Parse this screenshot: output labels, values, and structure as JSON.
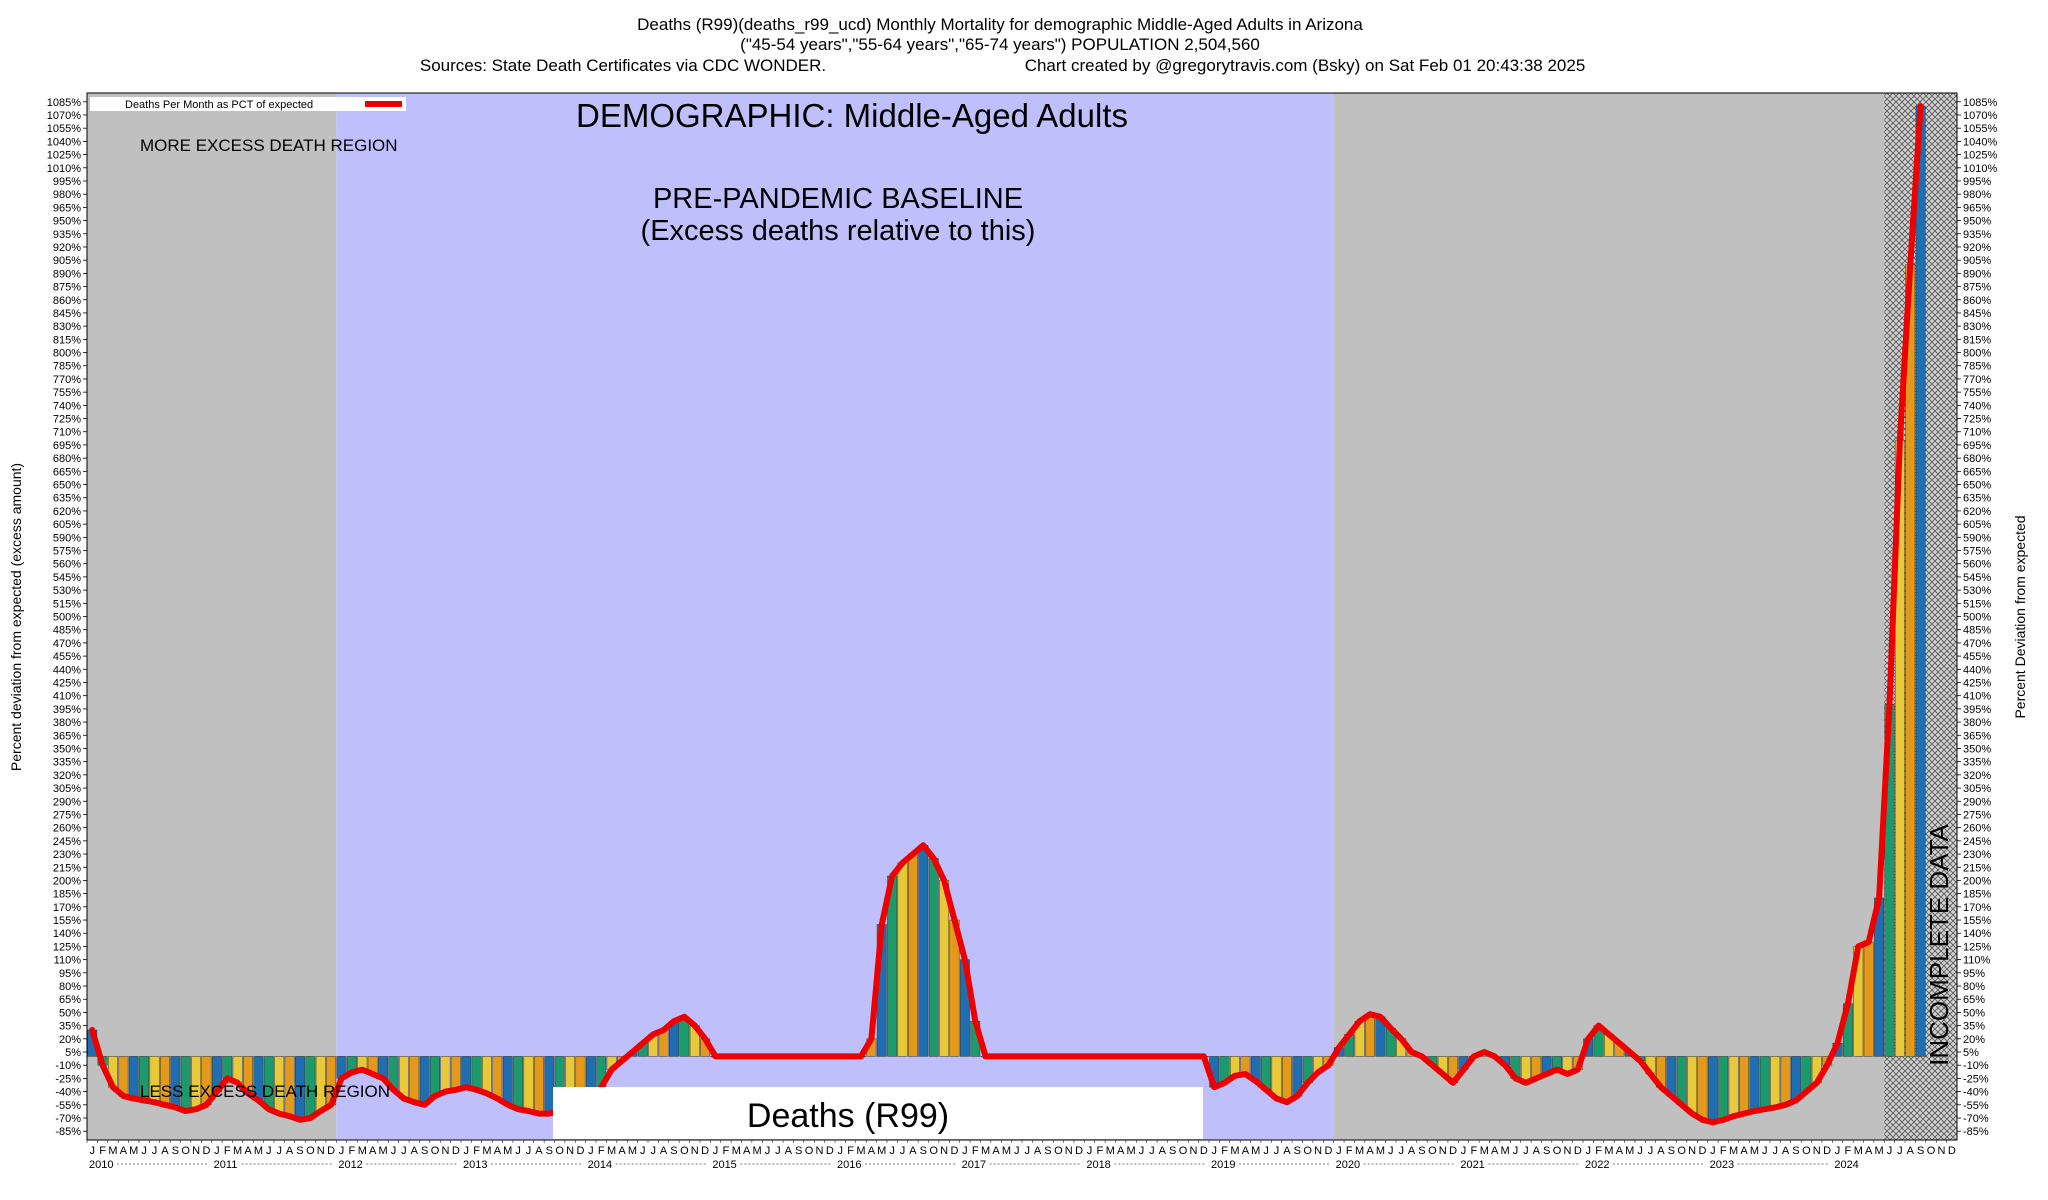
{
  "chart_data": {
    "type": "bar",
    "title_lines": [
      "Deaths (R99)(deaths_r99_ucd) Monthly Mortality for demographic Middle-Aged Adults in Arizona",
      "(\"45-54 years\",\"55-64 years\",\"65-74 years\") POPULATION 2,504,560",
      "Sources: State Death Certificates via CDC WONDER.",
      "Chart created by @gregorytravis.com (Bsky) on Sat Feb 01 20:43:38 2025"
    ],
    "ylabel_left": "Percent deviation from expected (excess amount)",
    "ylabel_right": "Percent Deviation from expected",
    "legend": "Deaths Per Month as PCT of expected",
    "legend_placement": "top-left",
    "demographic_label": "DEMOGRAPHIC: Middle-Aged Adults",
    "baseline_label_1": "PRE-PANDEMIC BASELINE",
    "baseline_label_2": "(Excess deaths relative to this)",
    "more_region_label": "MORE EXCESS DEATH REGION",
    "less_region_label": "LESS EXCESS DEATH REGION",
    "incomplete_label": "INCOMPLETE DATA",
    "footer_label": "Deaths (R99)",
    "ylim": [
      -95,
      1095
    ],
    "y_tick_step": 15,
    "y_tick_start": -85,
    "month_letters": [
      "J",
      "F",
      "M",
      "A",
      "M",
      "J",
      "J",
      "A",
      "S",
      "O",
      "N",
      "D"
    ],
    "years": [
      "2010",
      "2011",
      "2012",
      "2013",
      "2014",
      "2015",
      "2016",
      "2017",
      "2018",
      "2019",
      "2020",
      "2021",
      "2022",
      "2023",
      "2024"
    ],
    "region_gray_1": [
      "2010-01",
      "2011-12"
    ],
    "region_baseline": [
      "2012-01",
      "2019-12"
    ],
    "region_gray_2": [
      "2020-01",
      "2024-12"
    ],
    "region_incomplete": [
      "2024-06",
      "2024-12"
    ],
    "bar_colors": [
      "#1f6fb0",
      "#1c9a6c",
      "#e8c93a",
      "#e39a1c"
    ],
    "line_color": "#ee0000",
    "gray_color": "#c0c0c0",
    "baseline_color": "#bfbffc",
    "values": [
      30,
      -10,
      -35,
      -45,
      -48,
      -50,
      -52,
      -55,
      -58,
      -62,
      -60,
      -55,
      -40,
      -25,
      -30,
      -42,
      -50,
      -60,
      -65,
      -68,
      -72,
      -70,
      -62,
      -55,
      -25,
      -18,
      -15,
      -20,
      -25,
      -38,
      -48,
      -52,
      -55,
      -45,
      -40,
      -38,
      -35,
      -38,
      -42,
      -48,
      -55,
      -60,
      -62,
      -65,
      -65,
      -62,
      -60,
      -58,
      -50,
      -35,
      -15,
      -5,
      5,
      15,
      25,
      30,
      40,
      45,
      35,
      20,
      0,
      0,
      0,
      0,
      0,
      0,
      0,
      0,
      0,
      0,
      0,
      0,
      0,
      0,
      0,
      20,
      150,
      205,
      220,
      230,
      240,
      225,
      200,
      155,
      110,
      40,
      0,
      0,
      0,
      0,
      0,
      0,
      0,
      0,
      0,
      0,
      0,
      0,
      0,
      0,
      0,
      0,
      0,
      0,
      0,
      0,
      0,
      0,
      -35,
      -30,
      -22,
      -20,
      -28,
      -38,
      -48,
      -52,
      -45,
      -30,
      -18,
      -10,
      10,
      25,
      40,
      48,
      45,
      32,
      20,
      5,
      0,
      -10,
      -20,
      -30,
      -15,
      0,
      5,
      0,
      -10,
      -25,
      -30,
      -25,
      -20,
      -15,
      -20,
      -15,
      20,
      35,
      25,
      15,
      5,
      -5,
      -20,
      -35,
      -45,
      -55,
      -65,
      -72,
      -75,
      -72,
      -68,
      -65,
      -62,
      -60,
      -58,
      -55,
      -50,
      -40,
      -30,
      -10,
      15,
      60,
      125,
      130,
      180,
      400,
      700,
      900,
      1080
    ]
  }
}
